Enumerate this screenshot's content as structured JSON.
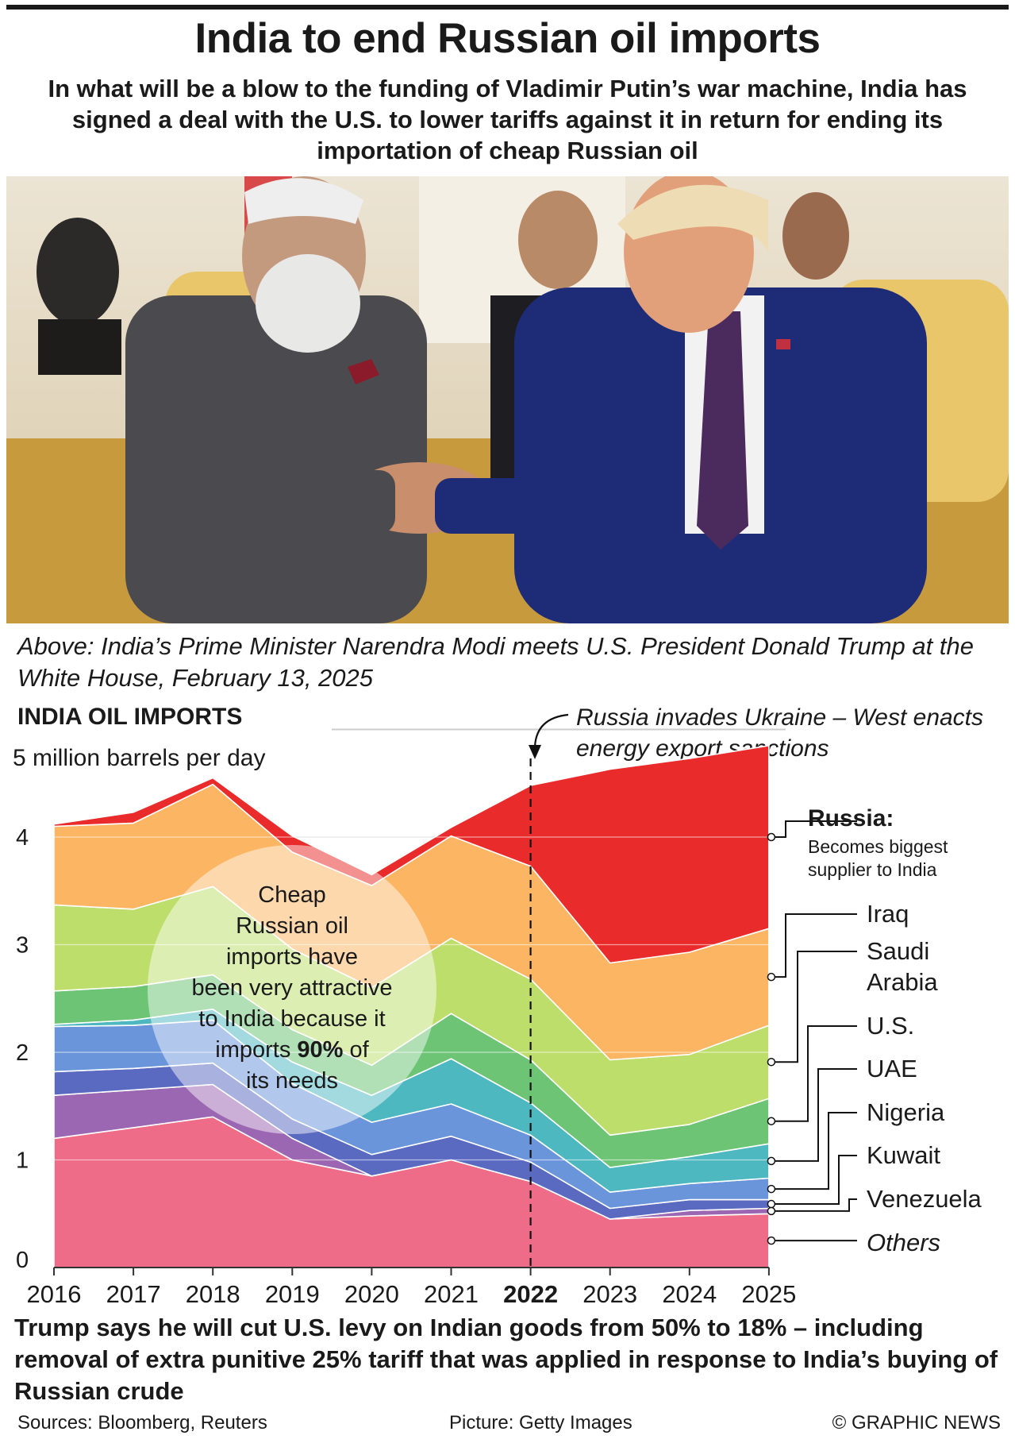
{
  "header": {
    "title": "India to end Russian oil imports",
    "subtitle": "In what will be a blow to the funding of Vladimir Putin’s war machine, India has signed a deal with the U.S. to lower tariffs against it in return for ending its importation of cheap Russian oil"
  },
  "photo": {
    "caption": "Above: India’s Prime Minister Narendra Modi meets U.S. President Donald Trump at the White House, February 13, 2025"
  },
  "chart_data": {
    "type": "area",
    "title": "INDIA OIL IMPORTS",
    "ylabel": "5 million barrels per day",
    "ylim": [
      0,
      5
    ],
    "yticks": [
      "0",
      "1",
      "2",
      "3",
      "4"
    ],
    "categories": [
      "2016",
      "2017",
      "2018",
      "2019",
      "2020",
      "2021",
      "2022",
      "2023",
      "2024",
      "2025"
    ],
    "highlight_category": "2022",
    "event_annotation": "Russia invades Ukraine – West enacts energy export sanctions",
    "callout": {
      "text": "Cheap Russian oil imports have been very attractive to India because it imports 90% of its needs",
      "emphasis": "90%"
    },
    "series": [
      {
        "name": "Others",
        "color": "#ee6c87",
        "values": [
          1.2,
          1.3,
          1.4,
          1.0,
          0.85,
          1.0,
          0.8,
          0.45,
          0.48,
          0.5
        ]
      },
      {
        "name": "Venezuela",
        "color": "#9c67b2",
        "values": [
          0.4,
          0.35,
          0.3,
          0.2,
          0.0,
          0.0,
          0.0,
          0.0,
          0.05,
          0.05
        ]
      },
      {
        "name": "Kuwait",
        "color": "#5a6ac1",
        "values": [
          0.22,
          0.2,
          0.2,
          0.18,
          0.2,
          0.22,
          0.18,
          0.1,
          0.1,
          0.08
        ]
      },
      {
        "name": "Nigeria",
        "color": "#6a95db",
        "values": [
          0.42,
          0.4,
          0.4,
          0.33,
          0.3,
          0.3,
          0.25,
          0.15,
          0.15,
          0.2
        ]
      },
      {
        "name": "UAE",
        "color": "#4eb8c1",
        "values": [
          0.02,
          0.05,
          0.1,
          0.2,
          0.25,
          0.42,
          0.3,
          0.23,
          0.25,
          0.32
        ]
      },
      {
        "name": "U.S.",
        "color": "#6cc474",
        "values": [
          0.31,
          0.31,
          0.32,
          0.3,
          0.28,
          0.42,
          0.4,
          0.3,
          0.3,
          0.42
        ]
      },
      {
        "name": "Saudi Arabia",
        "color": "#bede6c",
        "values": [
          0.8,
          0.72,
          0.82,
          0.75,
          0.72,
          0.7,
          0.75,
          0.7,
          0.65,
          0.68
        ]
      },
      {
        "name": "Iraq",
        "color": "#fbb563",
        "values": [
          0.73,
          0.8,
          0.95,
          0.9,
          0.95,
          0.95,
          1.05,
          0.9,
          0.95,
          0.9
        ]
      },
      {
        "name": "Russia",
        "color": "#e92b2b",
        "values": [
          0.02,
          0.1,
          0.06,
          0.15,
          0.1,
          0.08,
          0.75,
          1.8,
          1.8,
          1.7
        ]
      }
    ],
    "russia_note": "Becomes biggest supplier to India"
  },
  "bottom_text": "Trump says he will cut U.S. levy on Indian goods from 50% to 18% – including removal of extra punitive 25% tariff that was applied in response to India’s buying of Russian crude",
  "footer": {
    "sources": "Sources: Bloomberg, Reuters",
    "picture": "Picture: Getty Images",
    "credit": "© GRAPHIC NEWS"
  }
}
